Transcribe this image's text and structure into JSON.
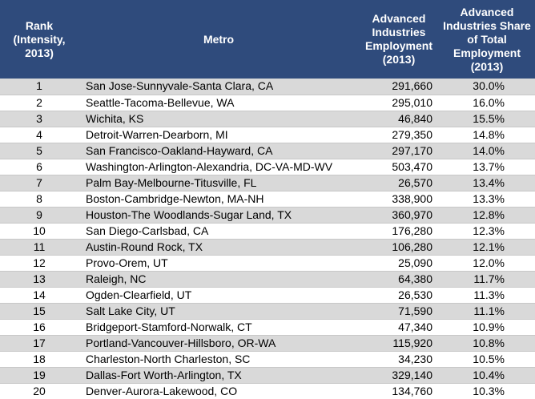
{
  "table": {
    "header": [
      "Rank (Intensity, 2013)",
      "Metro",
      "Advanced Industries Employment (2013)",
      "Advanced Industries Share of Total Employment (2013)"
    ],
    "rows": [
      [
        "1",
        "San Jose-Sunnyvale-Santa Clara, CA",
        "291,660",
        "30.0%"
      ],
      [
        "2",
        "Seattle-Tacoma-Bellevue, WA",
        "295,010",
        "16.0%"
      ],
      [
        "3",
        "Wichita, KS",
        "46,840",
        "15.5%"
      ],
      [
        "4",
        "Detroit-Warren-Dearborn, MI",
        "279,350",
        "14.8%"
      ],
      [
        "5",
        "San Francisco-Oakland-Hayward, CA",
        "297,170",
        "14.0%"
      ],
      [
        "6",
        "Washington-Arlington-Alexandria, DC-VA-MD-WV",
        "503,470",
        "13.7%"
      ],
      [
        "7",
        "Palm Bay-Melbourne-Titusville, FL",
        "26,570",
        "13.4%"
      ],
      [
        "8",
        "Boston-Cambridge-Newton, MA-NH",
        "338,900",
        "13.3%"
      ],
      [
        "9",
        "Houston-The Woodlands-Sugar Land, TX",
        "360,970",
        "12.8%"
      ],
      [
        "10",
        "San Diego-Carlsbad, CA",
        "176,280",
        "12.3%"
      ],
      [
        "11",
        "Austin-Round Rock, TX",
        "106,280",
        "12.1%"
      ],
      [
        "12",
        "Provo-Orem, UT",
        "25,090",
        "12.0%"
      ],
      [
        "13",
        "Raleigh, NC",
        "64,380",
        "11.7%"
      ],
      [
        "14",
        "Ogden-Clearfield, UT",
        "26,530",
        "11.3%"
      ],
      [
        "15",
        "Salt Lake City, UT",
        "71,590",
        "11.1%"
      ],
      [
        "16",
        "Bridgeport-Stamford-Norwalk, CT",
        "47,340",
        "10.9%"
      ],
      [
        "17",
        "Portland-Vancouver-Hillsboro, OR-WA",
        "115,920",
        "10.8%"
      ],
      [
        "18",
        "Charleston-North Charleston, SC",
        "34,230",
        "10.5%"
      ],
      [
        "19",
        "Dallas-Fort Worth-Arlington, TX",
        "329,140",
        "10.4%"
      ],
      [
        "20",
        "Denver-Aurora-Lakewood, CO",
        "134,760",
        "10.3%"
      ]
    ]
  }
}
